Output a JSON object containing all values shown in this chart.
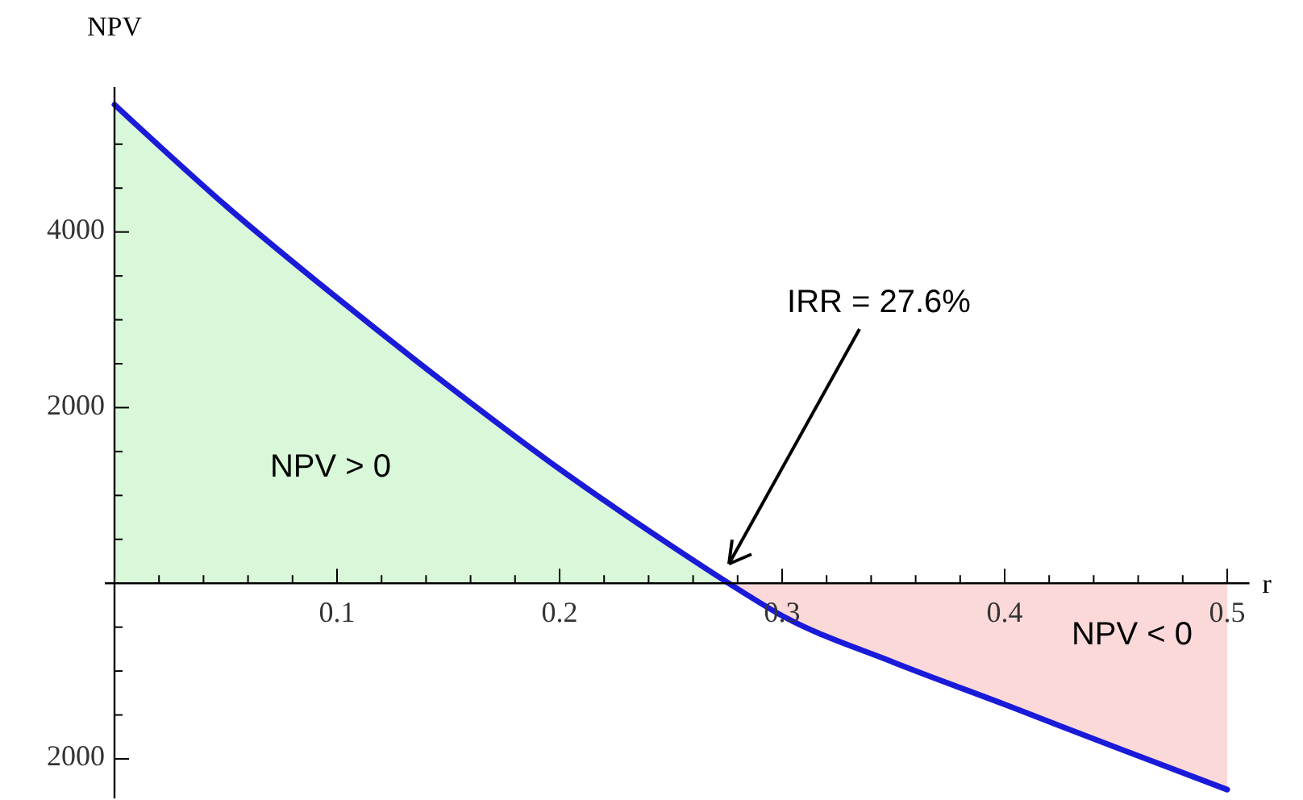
{
  "chart_data": {
    "type": "line",
    "xlabel": "r",
    "ylabel": "NPV",
    "xlim": [
      0,
      0.51
    ],
    "ylim": [
      -2450,
      5650
    ],
    "xticks": [
      {
        "value": 0.02,
        "label": null
      },
      {
        "value": 0.04,
        "label": null
      },
      {
        "value": 0.06,
        "label": null
      },
      {
        "value": 0.08,
        "label": null
      },
      0.1,
      {
        "value": 0.12,
        "label": null
      },
      {
        "value": 0.14,
        "label": null
      },
      {
        "value": 0.16,
        "label": null
      },
      {
        "value": 0.18,
        "label": null
      },
      0.2,
      {
        "value": 0.22,
        "label": null
      },
      {
        "value": 0.24,
        "label": null
      },
      {
        "value": 0.26,
        "label": null
      },
      {
        "value": 0.28,
        "label": null
      },
      0.3,
      {
        "value": 0.32,
        "label": null
      },
      {
        "value": 0.34,
        "label": null
      },
      {
        "value": 0.36,
        "label": null
      },
      {
        "value": 0.38,
        "label": null
      },
      0.4,
      {
        "value": 0.42,
        "label": null
      },
      {
        "value": 0.44,
        "label": null
      },
      {
        "value": 0.46,
        "label": null
      },
      {
        "value": 0.48,
        "label": null
      },
      0.5
    ],
    "yticks": [
      {
        "value": -2000,
        "label": "2000"
      },
      {
        "value": -1500,
        "label": null
      },
      {
        "value": -1000,
        "label": null
      },
      {
        "value": -500,
        "label": null
      },
      {
        "value": 500,
        "label": null
      },
      {
        "value": 1000,
        "label": null
      },
      {
        "value": 1500,
        "label": null
      },
      2000,
      {
        "value": 2500,
        "label": null
      },
      {
        "value": 3000,
        "label": null
      },
      {
        "value": 3500,
        "label": null
      },
      4000,
      {
        "value": 4500,
        "label": null
      },
      {
        "value": 5000,
        "label": null
      }
    ],
    "series": [
      {
        "type": "area",
        "color": "#d9f7d9",
        "x": [
          0,
          0.05,
          0.1,
          0.15,
          0.2,
          0.25,
          0.276
        ],
        "values": [
          5450,
          4300,
          3250,
          2250,
          1300,
          430,
          0
        ]
      },
      {
        "type": "area",
        "color": "#fcd9d9",
        "x": [
          0.276,
          0.3,
          0.35,
          0.4,
          0.45,
          0.5
        ],
        "values": [
          0,
          -370,
          -900,
          -1380,
          -1870,
          -2350
        ]
      },
      {
        "color": "#1a1ad9",
        "x": [
          0,
          0.05,
          0.1,
          0.15,
          0.2,
          0.25,
          0.276,
          0.3,
          0.35,
          0.4,
          0.45,
          0.5
        ],
        "values": [
          5450,
          4300,
          3250,
          2250,
          1300,
          430,
          0,
          -370,
          -900,
          -1380,
          -1870,
          -2350
        ]
      }
    ],
    "annotations": [
      "IRR = 27.6%",
      "NPV > 0",
      "NPV < 0"
    ],
    "grid": false,
    "marker": "none",
    "line_style": "solid"
  }
}
